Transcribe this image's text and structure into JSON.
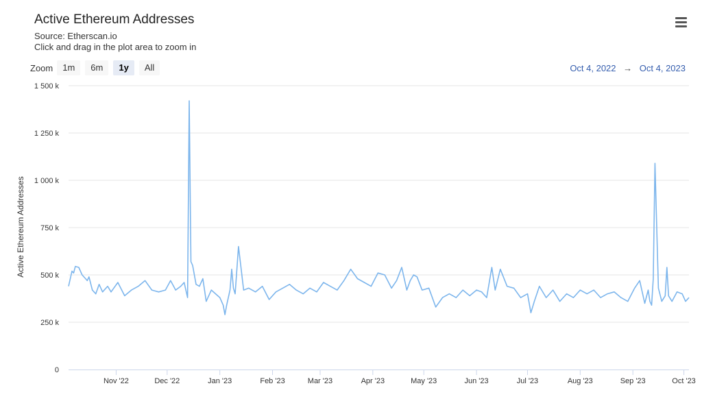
{
  "header": {
    "title": "Active Ethereum Addresses",
    "source": "Source: Etherscan.io",
    "hint": "Click and drag in the plot area to zoom in"
  },
  "zoom": {
    "label": "Zoom",
    "buttons": [
      "1m",
      "6m",
      "1y",
      "All"
    ],
    "active": "1y"
  },
  "range": {
    "from": "Oct 4, 2022",
    "arrow": "→",
    "to": "Oct 4, 2023"
  },
  "icons": {
    "menu": "hamburger-menu-icon"
  },
  "colors": {
    "line": "#7cb5ec",
    "grid": "#e6e6e6",
    "range_text": "#335cad"
  },
  "chart_data": {
    "type": "line",
    "title": "Active Ethereum Addresses",
    "ylabel": "Active Ethereum Addresses",
    "ylim": [
      0,
      1500000
    ],
    "yticks": [
      0,
      250000,
      500000,
      750000,
      1000000,
      1250000,
      1500000
    ],
    "ytick_labels": [
      "0",
      "250 k",
      "500 k",
      "750 k",
      "1 000 k",
      "1 250 k",
      "1 500 k"
    ],
    "x_range": [
      "2022-10-04",
      "2023-10-04"
    ],
    "xtick_dates": [
      "2022-11-01",
      "2022-12-01",
      "2023-01-01",
      "2023-02-01",
      "2023-03-01",
      "2023-04-01",
      "2023-05-01",
      "2023-06-01",
      "2023-07-01",
      "2023-08-01",
      "2023-09-01",
      "2023-10-01"
    ],
    "xtick_labels": [
      "Nov '22",
      "Dec '22",
      "Jan '23",
      "Feb '23",
      "Mar '23",
      "Apr '23",
      "May '23",
      "Jun '23",
      "Jul '23",
      "Aug '23",
      "Sep '23",
      "Oct '23"
    ],
    "grid": true,
    "series": [
      {
        "x": [
          "2022-10-04",
          "2022-10-06",
          "2022-10-07",
          "2022-10-08",
          "2022-10-10",
          "2022-10-12",
          "2022-10-14",
          "2022-10-15",
          "2022-10-16",
          "2022-10-18",
          "2022-10-20",
          "2022-10-22",
          "2022-10-24",
          "2022-10-27",
          "2022-10-29",
          "2022-11-02",
          "2022-11-06",
          "2022-11-10",
          "2022-11-14",
          "2022-11-18",
          "2022-11-22",
          "2022-11-26",
          "2022-11-30",
          "2022-12-03",
          "2022-12-06",
          "2022-12-09",
          "2022-12-11",
          "2022-12-13",
          "2022-12-14",
          "2022-12-15",
          "2022-12-16",
          "2022-12-18",
          "2022-12-20",
          "2022-12-22",
          "2022-12-24",
          "2022-12-27",
          "2023-01-01",
          "2023-01-03",
          "2023-01-04",
          "2023-01-05",
          "2023-01-07",
          "2023-01-08",
          "2023-01-09",
          "2023-01-10",
          "2023-01-12",
          "2023-01-15",
          "2023-01-18",
          "2023-01-22",
          "2023-01-26",
          "2023-01-30",
          "2023-02-03",
          "2023-02-07",
          "2023-02-11",
          "2023-02-15",
          "2023-02-19",
          "2023-02-23",
          "2023-02-27",
          "2023-03-03",
          "2023-03-07",
          "2023-03-11",
          "2023-03-15",
          "2023-03-19",
          "2023-03-23",
          "2023-03-27",
          "2023-03-31",
          "2023-04-04",
          "2023-04-08",
          "2023-04-12",
          "2023-04-15",
          "2023-04-18",
          "2023-04-21",
          "2023-04-23",
          "2023-04-25",
          "2023-04-27",
          "2023-04-30",
          "2023-05-04",
          "2023-05-08",
          "2023-05-12",
          "2023-05-16",
          "2023-05-20",
          "2023-05-24",
          "2023-05-28",
          "2023-06-01",
          "2023-06-04",
          "2023-06-07",
          "2023-06-10",
          "2023-06-12",
          "2023-06-15",
          "2023-06-19",
          "2023-06-23",
          "2023-06-27",
          "2023-07-01",
          "2023-07-03",
          "2023-07-05",
          "2023-07-08",
          "2023-07-12",
          "2023-07-16",
          "2023-07-20",
          "2023-07-24",
          "2023-07-28",
          "2023-08-01",
          "2023-08-05",
          "2023-08-09",
          "2023-08-13",
          "2023-08-17",
          "2023-08-21",
          "2023-08-25",
          "2023-08-29",
          "2023-09-02",
          "2023-09-05",
          "2023-09-08",
          "2023-09-10",
          "2023-09-11",
          "2023-09-12",
          "2023-09-13",
          "2023-09-14",
          "2023-09-16",
          "2023-09-18",
          "2023-09-20",
          "2023-09-21",
          "2023-09-22",
          "2023-09-24",
          "2023-09-27",
          "2023-09-30",
          "2023-10-02",
          "2023-10-04"
        ],
        "y": [
          440000,
          520000,
          510000,
          545000,
          540000,
          500000,
          480000,
          470000,
          490000,
          420000,
          400000,
          450000,
          410000,
          440000,
          410000,
          460000,
          390000,
          420000,
          440000,
          470000,
          420000,
          410000,
          420000,
          470000,
          420000,
          440000,
          460000,
          380000,
          1420000,
          570000,
          550000,
          450000,
          440000,
          480000,
          360000,
          420000,
          380000,
          340000,
          290000,
          340000,
          420000,
          530000,
          430000,
          400000,
          650000,
          420000,
          430000,
          410000,
          440000,
          370000,
          410000,
          430000,
          450000,
          420000,
          400000,
          430000,
          410000,
          460000,
          440000,
          420000,
          470000,
          530000,
          480000,
          460000,
          440000,
          510000,
          500000,
          430000,
          470000,
          540000,
          420000,
          470000,
          500000,
          490000,
          420000,
          430000,
          330000,
          380000,
          400000,
          380000,
          420000,
          390000,
          420000,
          410000,
          380000,
          540000,
          420000,
          530000,
          440000,
          430000,
          380000,
          400000,
          300000,
          360000,
          440000,
          380000,
          420000,
          360000,
          400000,
          380000,
          420000,
          400000,
          420000,
          380000,
          400000,
          410000,
          380000,
          360000,
          430000,
          470000,
          350000,
          420000,
          360000,
          340000,
          480000,
          1090000,
          430000,
          360000,
          390000,
          540000,
          390000,
          360000,
          410000,
          400000,
          360000,
          380000
        ]
      }
    ]
  }
}
